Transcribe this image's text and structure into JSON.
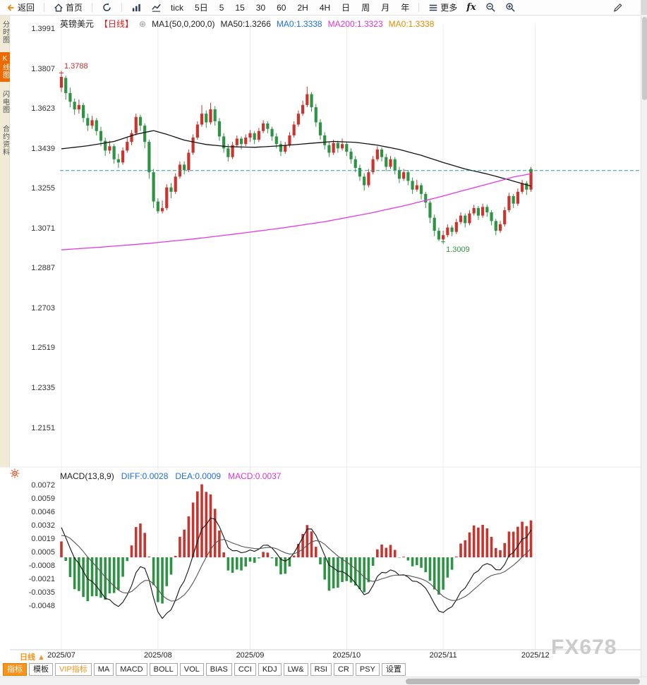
{
  "toolbar": {
    "back": "返回",
    "home": "首页",
    "periods": [
      "tick",
      "5日",
      "5",
      "15",
      "30",
      "60",
      "2H",
      "4H",
      "日",
      "周",
      "月",
      "年"
    ],
    "more": "更多",
    "fx": "fx"
  },
  "sidebar": {
    "items": [
      {
        "label": "分时图",
        "active": false
      },
      {
        "label": "K线图",
        "active": true
      },
      {
        "label": "闪电图",
        "active": false
      },
      {
        "label": "合约资料",
        "active": false
      }
    ]
  },
  "chart_header": {
    "symbol": "英镑美元",
    "period_tag": "【日线】",
    "add_icon": "⊕",
    "ma_group": "MA1(50,0,200,0)",
    "ma50": "MA50:1.3266",
    "ma0_blue": "MA0:1.3338",
    "ma200": "MA200:1.3323",
    "ma0_orange": "MA0:1.3338"
  },
  "macd_header": {
    "title": "MACD(13,8,9)",
    "diff": "DIFF:0.0028",
    "dea": "DEA:0.0009",
    "macd": "MACD:0.0037"
  },
  "annotations": {
    "high": "1.3788",
    "low": "1.3009"
  },
  "y_axis": [
    "1.3991",
    "1.3807",
    "1.3623",
    "1.3439",
    "1.3255",
    "1.3071",
    "1.2887",
    "1.2703",
    "1.2519",
    "1.2335",
    "1.2151"
  ],
  "macd_axis": [
    "0.0072",
    "0.0059",
    "0.0046",
    "0.0032",
    "0.0019",
    "0.0005",
    "-0.0008",
    "-0.0021",
    "-0.0035",
    "-0.0048"
  ],
  "x_axis": {
    "period_label": "日线 ▲",
    "months": [
      "2025/07",
      "2025/08",
      "2025/09",
      "2025/10",
      "2025/11",
      "2025/12"
    ]
  },
  "tabs": [
    {
      "label": "指标",
      "state": "active"
    },
    {
      "label": "模板",
      "state": ""
    },
    {
      "label": "VIP指标",
      "state": "vip"
    },
    {
      "label": "MA",
      "state": ""
    },
    {
      "label": "MACD",
      "state": ""
    },
    {
      "label": "BOLL",
      "state": ""
    },
    {
      "label": "VOL",
      "state": ""
    },
    {
      "label": "BIAS",
      "state": ""
    },
    {
      "label": "CCI",
      "state": ""
    },
    {
      "label": "KDJ",
      "state": ""
    },
    {
      "label": "LW&",
      "state": ""
    },
    {
      "label": "RSI",
      "state": ""
    },
    {
      "label": "CR",
      "state": ""
    },
    {
      "label": "PSY",
      "state": ""
    },
    {
      "label": "设置",
      "state": ""
    }
  ],
  "watermark": "FX678",
  "colors": {
    "up": "#c9342f",
    "down": "#2e9444",
    "ma50": "#111111",
    "ma200": "#e23ae2",
    "price_line": "#2a9b9b",
    "diff_line": "#111111",
    "dea_line": "#555555",
    "accent": "#f7941d",
    "sidebar_active": "#ee6a00",
    "grid": "#ececec"
  },
  "chart_data": {
    "type": "candlestick",
    "title": "英镑美元 日线 (GBP/USD daily)",
    "price_line": 1.3338,
    "high_marked": 1.3788,
    "low_marked": 1.3009,
    "month_start_indices": [
      0,
      22,
      43,
      65,
      87,
      108
    ],
    "candles": [
      [
        1.372,
        1.3788,
        1.37,
        1.377
      ],
      [
        1.3765,
        1.3775,
        1.3665,
        1.3695
      ],
      [
        1.3695,
        1.372,
        1.363,
        1.3655
      ],
      [
        1.3655,
        1.367,
        1.3595,
        1.362
      ],
      [
        1.362,
        1.3665,
        1.36,
        1.364
      ],
      [
        1.364,
        1.365,
        1.356,
        1.358
      ],
      [
        1.358,
        1.36,
        1.352,
        1.3545
      ],
      [
        1.3545,
        1.359,
        1.353,
        1.357
      ],
      [
        1.357,
        1.358,
        1.35,
        1.352
      ],
      [
        1.352,
        1.354,
        1.345,
        1.3475
      ],
      [
        1.3475,
        1.349,
        1.3405,
        1.343
      ],
      [
        1.343,
        1.3475,
        1.3415,
        1.345
      ],
      [
        1.345,
        1.346,
        1.337,
        1.339
      ],
      [
        1.339,
        1.3415,
        1.335,
        1.3375
      ],
      [
        1.3375,
        1.3445,
        1.3365,
        1.343
      ],
      [
        1.343,
        1.349,
        1.342,
        1.347
      ],
      [
        1.347,
        1.3525,
        1.3455,
        1.351
      ],
      [
        1.351,
        1.36,
        1.35,
        1.3585
      ],
      [
        1.3585,
        1.3595,
        1.352,
        1.3545
      ],
      [
        1.3545,
        1.3555,
        1.344,
        1.347
      ],
      [
        1.347,
        1.348,
        1.33,
        1.333
      ],
      [
        1.333,
        1.3345,
        1.3165,
        1.3195
      ],
      [
        1.3195,
        1.321,
        1.314,
        1.315
      ],
      [
        1.315,
        1.32,
        1.314,
        1.3165
      ],
      [
        1.3165,
        1.3275,
        1.3155,
        1.326
      ],
      [
        1.326,
        1.328,
        1.321,
        1.324
      ],
      [
        1.324,
        1.3325,
        1.323,
        1.331
      ],
      [
        1.331,
        1.338,
        1.33,
        1.3365
      ],
      [
        1.3365,
        1.338,
        1.332,
        1.334
      ],
      [
        1.334,
        1.3435,
        1.333,
        1.342
      ],
      [
        1.342,
        1.3505,
        1.341,
        1.349
      ],
      [
        1.349,
        1.3565,
        1.348,
        1.355
      ],
      [
        1.355,
        1.364,
        1.354,
        1.36
      ],
      [
        1.36,
        1.3615,
        1.3535,
        1.356
      ],
      [
        1.356,
        1.365,
        1.355,
        1.362
      ],
      [
        1.362,
        1.3635,
        1.3545,
        1.3565
      ],
      [
        1.3565,
        1.358,
        1.3475,
        1.3495
      ],
      [
        1.3495,
        1.351,
        1.342,
        1.344
      ],
      [
        1.344,
        1.346,
        1.338,
        1.34
      ],
      [
        1.34,
        1.347,
        1.339,
        1.3455
      ],
      [
        1.3455,
        1.35,
        1.3445,
        1.3485
      ],
      [
        1.3485,
        1.3495,
        1.3435,
        1.346
      ],
      [
        1.346,
        1.3505,
        1.345,
        1.349
      ],
      [
        1.349,
        1.3525,
        1.347,
        1.351
      ],
      [
        1.351,
        1.352,
        1.346,
        1.348
      ],
      [
        1.348,
        1.3535,
        1.347,
        1.352
      ],
      [
        1.352,
        1.357,
        1.351,
        1.3555
      ],
      [
        1.3555,
        1.3565,
        1.351,
        1.353
      ],
      [
        1.353,
        1.354,
        1.3475,
        1.3495
      ],
      [
        1.3495,
        1.351,
        1.344,
        1.346
      ],
      [
        1.346,
        1.3475,
        1.3405,
        1.3425
      ],
      [
        1.3425,
        1.347,
        1.3415,
        1.3455
      ],
      [
        1.3455,
        1.3515,
        1.3445,
        1.35
      ],
      [
        1.35,
        1.3565,
        1.349,
        1.355
      ],
      [
        1.355,
        1.3615,
        1.354,
        1.36
      ],
      [
        1.36,
        1.366,
        1.359,
        1.364
      ],
      [
        1.364,
        1.3725,
        1.363,
        1.369
      ],
      [
        1.369,
        1.37,
        1.361,
        1.363
      ],
      [
        1.363,
        1.3645,
        1.354,
        1.356
      ],
      [
        1.356,
        1.3575,
        1.348,
        1.35
      ],
      [
        1.35,
        1.3515,
        1.3435,
        1.3455
      ],
      [
        1.3455,
        1.347,
        1.34,
        1.342
      ],
      [
        1.342,
        1.348,
        1.341,
        1.3465
      ],
      [
        1.3465,
        1.3475,
        1.342,
        1.344
      ],
      [
        1.344,
        1.3485,
        1.343,
        1.346
      ],
      [
        1.346,
        1.347,
        1.3405,
        1.3425
      ],
      [
        1.3425,
        1.344,
        1.337,
        1.339
      ],
      [
        1.339,
        1.3405,
        1.333,
        1.335
      ],
      [
        1.335,
        1.3365,
        1.329,
        1.331
      ],
      [
        1.331,
        1.3325,
        1.3245,
        1.327
      ],
      [
        1.327,
        1.3345,
        1.326,
        1.333
      ],
      [
        1.333,
        1.3405,
        1.332,
        1.339
      ],
      [
        1.339,
        1.345,
        1.338,
        1.3435
      ],
      [
        1.3435,
        1.3445,
        1.338,
        1.34
      ],
      [
        1.34,
        1.3415,
        1.3335,
        1.3355
      ],
      [
        1.3355,
        1.3405,
        1.3345,
        1.339
      ],
      [
        1.339,
        1.34,
        1.332,
        1.334
      ],
      [
        1.334,
        1.3355,
        1.328,
        1.33
      ],
      [
        1.33,
        1.3345,
        1.329,
        1.333
      ],
      [
        1.333,
        1.334,
        1.327,
        1.329
      ],
      [
        1.329,
        1.3305,
        1.323,
        1.325
      ],
      [
        1.325,
        1.3295,
        1.324,
        1.327
      ],
      [
        1.327,
        1.328,
        1.3205,
        1.323
      ],
      [
        1.323,
        1.324,
        1.3165,
        1.319
      ],
      [
        1.319,
        1.32,
        1.3095,
        1.312
      ],
      [
        1.312,
        1.3135,
        1.3035,
        1.306
      ],
      [
        1.306,
        1.3075,
        1.3012,
        1.302
      ],
      [
        1.302,
        1.306,
        1.3009,
        1.304
      ],
      [
        1.304,
        1.309,
        1.303,
        1.3075
      ],
      [
        1.3075,
        1.3085,
        1.3035,
        1.3055
      ],
      [
        1.3055,
        1.3115,
        1.3045,
        1.31
      ],
      [
        1.31,
        1.3145,
        1.309,
        1.313
      ],
      [
        1.313,
        1.314,
        1.3075,
        1.3095
      ],
      [
        1.3095,
        1.3155,
        1.3085,
        1.314
      ],
      [
        1.314,
        1.318,
        1.313,
        1.3165
      ],
      [
        1.3165,
        1.3175,
        1.311,
        1.313
      ],
      [
        1.313,
        1.3185,
        1.312,
        1.317
      ],
      [
        1.317,
        1.318,
        1.3125,
        1.3145
      ],
      [
        1.3145,
        1.3155,
        1.3085,
        1.3105
      ],
      [
        1.3105,
        1.3115,
        1.304,
        1.306
      ],
      [
        1.306,
        1.3105,
        1.305,
        1.309
      ],
      [
        1.309,
        1.317,
        1.308,
        1.3155
      ],
      [
        1.3155,
        1.3235,
        1.3145,
        1.322
      ],
      [
        1.322,
        1.323,
        1.3165,
        1.3185
      ],
      [
        1.3185,
        1.3255,
        1.3175,
        1.324
      ],
      [
        1.324,
        1.3295,
        1.323,
        1.328
      ],
      [
        1.328,
        1.329,
        1.3225,
        1.325
      ],
      [
        1.325,
        1.3355,
        1.324,
        1.3338
      ]
    ],
    "ma50_points": [
      [
        0,
        1.3438
      ],
      [
        6,
        1.3452
      ],
      [
        12,
        1.3472
      ],
      [
        17,
        1.3505
      ],
      [
        21,
        1.3522
      ],
      [
        24,
        1.3505
      ],
      [
        28,
        1.3478
      ],
      [
        33,
        1.3458
      ],
      [
        38,
        1.3448
      ],
      [
        44,
        1.3445
      ],
      [
        50,
        1.3452
      ],
      [
        56,
        1.3462
      ],
      [
        62,
        1.3472
      ],
      [
        67,
        1.3468
      ],
      [
        72,
        1.3455
      ],
      [
        77,
        1.3435
      ],
      [
        82,
        1.3408
      ],
      [
        87,
        1.3375
      ],
      [
        92,
        1.3345
      ],
      [
        97,
        1.3322
      ],
      [
        102,
        1.3295
      ],
      [
        107,
        1.3266
      ]
    ],
    "ma200_points": [
      [
        0,
        1.2972
      ],
      [
        10,
        1.2986
      ],
      [
        20,
        1.3002
      ],
      [
        30,
        1.3022
      ],
      [
        40,
        1.3046
      ],
      [
        50,
        1.3072
      ],
      [
        60,
        1.3102
      ],
      [
        70,
        1.314
      ],
      [
        78,
        1.3175
      ],
      [
        86,
        1.3215
      ],
      [
        92,
        1.3248
      ],
      [
        98,
        1.328
      ],
      [
        103,
        1.3308
      ],
      [
        107,
        1.3323
      ]
    ],
    "macd": {
      "fast": 8,
      "slow": 13,
      "signal": 9,
      "seed_spread": 0.0035,
      "seed_dea": 0.002
    }
  }
}
